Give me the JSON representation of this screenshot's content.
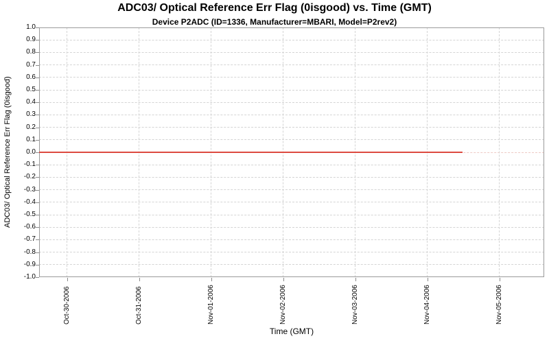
{
  "chart_data": {
    "type": "line",
    "title": "ADC03/ Optical Reference Err Flag (0isgood) vs. Time (GMT)",
    "subtitle": "Device P2ADC (ID=1336, Manufacturer=MBARI, Model=P2rev2)",
    "xlabel": "Time (GMT)",
    "ylabel": "ADC03/ Optical Reference Err Flag (0isgood)",
    "legend": "none",
    "x_axis": {
      "tick_labels": [
        "Oct-30-2006",
        "Oct-31-2006",
        "Nov-01-2006",
        "Nov-02-2006",
        "Nov-03-2006",
        "Nov-04-2006",
        "Nov-05-2006"
      ],
      "tick_positions": [
        0,
        1,
        2,
        3,
        4,
        5,
        6
      ],
      "range": [
        -0.39,
        6.62
      ],
      "unit": "days relative to Oct-30-2006 00:00 GMT"
    },
    "y_axis": {
      "tick_labels": [
        "1.0",
        "0.9",
        "0.8",
        "0.7",
        "0.6",
        "0.5",
        "0.4",
        "0.3",
        "0.2",
        "0.1",
        "0.0",
        "-0.1",
        "-0.2",
        "-0.3",
        "-0.4",
        "-0.5",
        "-0.6",
        "-0.7",
        "-0.8",
        "-0.9",
        "-1.0"
      ],
      "range": [
        -1.0,
        1.0
      ],
      "tick_step": 0.1
    },
    "series": [
      {
        "name": "ADC03/ Optical Reference Err Flag",
        "color": "#dd4a3f",
        "x": [
          -0.39,
          5.49
        ],
        "y": [
          0.0,
          0.0
        ]
      }
    ],
    "grid": {
      "style": "dashed",
      "color": "#d4d4d4",
      "zero_baseline_color": "#eec9c4"
    },
    "plot_border_color": "#9a9a9a",
    "background_color": "#ffffff",
    "text_color": "#000000"
  }
}
